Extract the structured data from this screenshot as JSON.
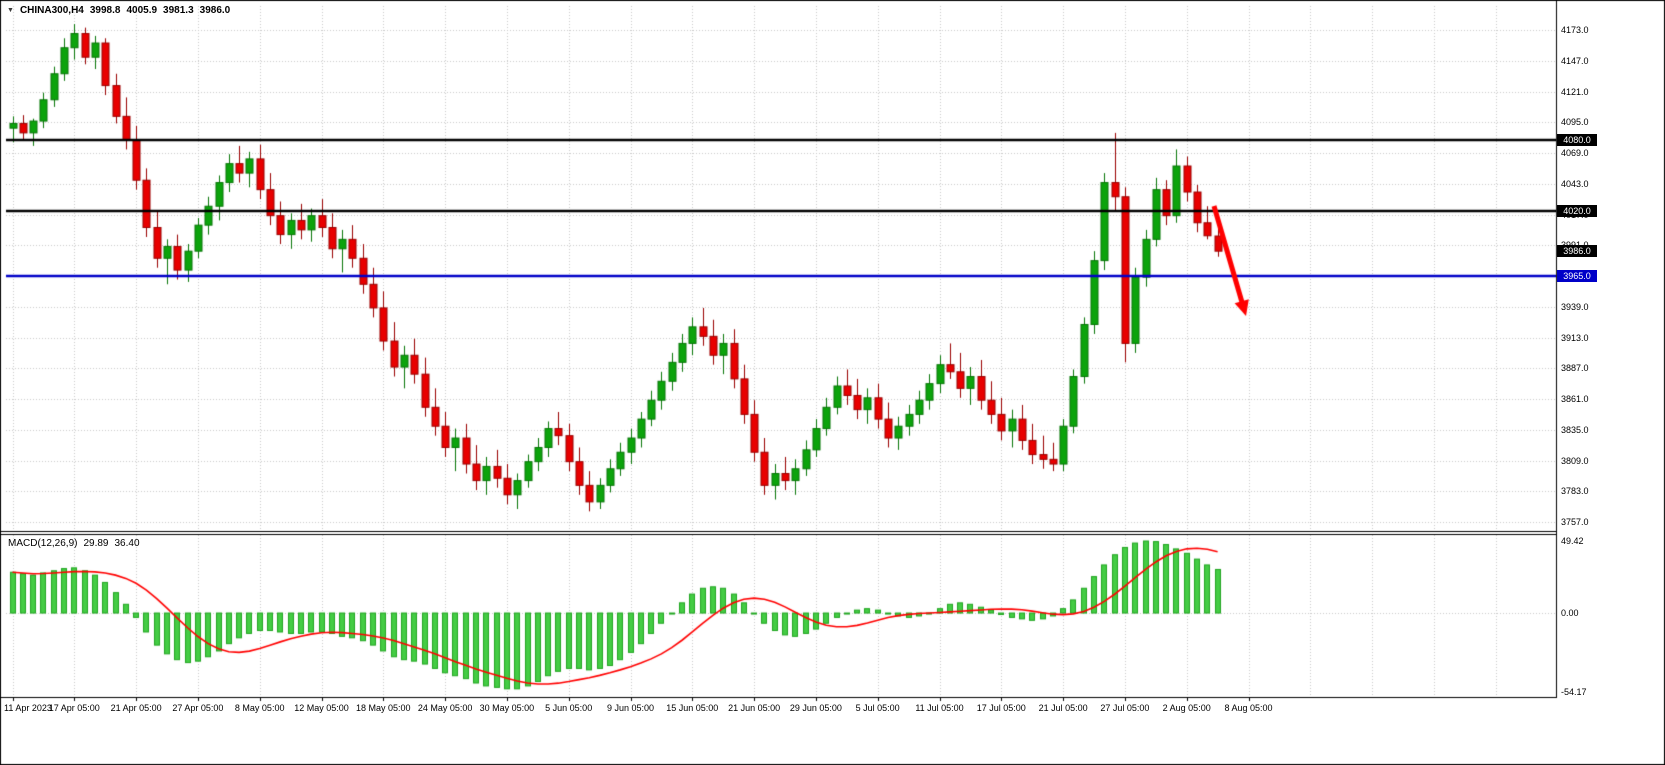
{
  "header": {
    "symbol_period": "CHINA300,H4",
    "open": "3998.8",
    "high": "4005.9",
    "low": "3981.3",
    "close": "3986.0"
  },
  "chart_data": {
    "type": "candlestick+macd",
    "symbol": "CHINA300",
    "timeframe": "H4",
    "price_axis": {
      "max": 4173.0,
      "min": 3757.0,
      "step": 26.0,
      "ticks": [
        "4173.0",
        "4147.0",
        "4121.0",
        "4095.0",
        "4069.0",
        "4043.0",
        "4017.0",
        "3991.0",
        "3965.0",
        "3939.0",
        "3913.0",
        "3887.0",
        "3861.0",
        "3835.0",
        "3809.0",
        "3783.0",
        "3757.0"
      ]
    },
    "time_axis": {
      "bars_per_label": 6,
      "labels": [
        "11 Apr 2023",
        "17 Apr 05:00",
        "21 Apr 05:00",
        "27 Apr 05:00",
        "8 May 05:00",
        "12 May 05:00",
        "18 May 05:00",
        "24 May 05:00",
        "30 May 05:00",
        "5 Jun 05:00",
        "9 Jun 05:00",
        "15 Jun 05:00",
        "21 Jun 05:00",
        "29 Jun 05:00",
        "5 Jul 05:00",
        "11 Jul 05:00",
        "17 Jul 05:00",
        "21 Jul 05:00",
        "27 Jul 05:00",
        "2 Aug 05:00",
        "8 Aug 05:00"
      ]
    },
    "candles": [
      [
        4090,
        4100,
        4078,
        4094
      ],
      [
        4094,
        4101,
        4080,
        4086
      ],
      [
        4086,
        4098,
        4075,
        4096
      ],
      [
        4096,
        4120,
        4090,
        4114
      ],
      [
        4114,
        4142,
        4108,
        4136
      ],
      [
        4136,
        4166,
        4130,
        4158
      ],
      [
        4158,
        4178,
        4148,
        4170
      ],
      [
        4170,
        4175,
        4144,
        4150
      ],
      [
        4150,
        4168,
        4140,
        4162
      ],
      [
        4162,
        4166,
        4118,
        4126
      ],
      [
        4126,
        4136,
        4094,
        4100
      ],
      [
        4100,
        4116,
        4072,
        4080
      ],
      [
        4080,
        4092,
        4038,
        4046
      ],
      [
        4046,
        4056,
        3998,
        4006
      ],
      [
        4006,
        4020,
        3972,
        3980
      ],
      [
        3980,
        3996,
        3958,
        3990
      ],
      [
        3990,
        4000,
        3962,
        3970
      ],
      [
        3970,
        3992,
        3960,
        3986
      ],
      [
        3986,
        4014,
        3980,
        4008
      ],
      [
        4008,
        4032,
        4000,
        4024
      ],
      [
        4024,
        4050,
        4012,
        4044
      ],
      [
        4044,
        4068,
        4036,
        4060
      ],
      [
        4060,
        4075,
        4044,
        4052
      ],
      [
        4052,
        4070,
        4040,
        4064
      ],
      [
        4064,
        4076,
        4030,
        4038
      ],
      [
        4038,
        4052,
        4008,
        4016
      ],
      [
        4016,
        4028,
        3992,
        4000
      ],
      [
        4000,
        4018,
        3988,
        4012
      ],
      [
        4012,
        4026,
        3996,
        4004
      ],
      [
        4004,
        4022,
        3994,
        4016
      ],
      [
        4016,
        4030,
        3998,
        4006
      ],
      [
        4006,
        4018,
        3980,
        3988
      ],
      [
        3988,
        4004,
        3968,
        3996
      ],
      [
        3996,
        4008,
        3972,
        3980
      ],
      [
        3980,
        3992,
        3950,
        3958
      ],
      [
        3958,
        3972,
        3930,
        3938
      ],
      [
        3938,
        3952,
        3902,
        3910
      ],
      [
        3910,
        3926,
        3880,
        3888
      ],
      [
        3888,
        3906,
        3870,
        3898
      ],
      [
        3898,
        3912,
        3874,
        3882
      ],
      [
        3882,
        3896,
        3846,
        3854
      ],
      [
        3854,
        3870,
        3830,
        3838
      ],
      [
        3838,
        3850,
        3812,
        3820
      ],
      [
        3820,
        3836,
        3800,
        3828
      ],
      [
        3828,
        3840,
        3798,
        3806
      ],
      [
        3806,
        3822,
        3784,
        3792
      ],
      [
        3792,
        3812,
        3780,
        3804
      ],
      [
        3804,
        3818,
        3786,
        3794
      ],
      [
        3794,
        3806,
        3772,
        3780
      ],
      [
        3780,
        3798,
        3768,
        3792
      ],
      [
        3792,
        3814,
        3786,
        3808
      ],
      [
        3808,
        3828,
        3800,
        3820
      ],
      [
        3820,
        3842,
        3812,
        3836
      ],
      [
        3836,
        3850,
        3822,
        3830
      ],
      [
        3830,
        3840,
        3800,
        3808
      ],
      [
        3808,
        3820,
        3780,
        3788
      ],
      [
        3788,
        3800,
        3766,
        3774
      ],
      [
        3774,
        3794,
        3768,
        3788
      ],
      [
        3788,
        3810,
        3782,
        3802
      ],
      [
        3802,
        3824,
        3796,
        3816
      ],
      [
        3816,
        3836,
        3806,
        3828
      ],
      [
        3828,
        3850,
        3820,
        3844
      ],
      [
        3844,
        3868,
        3838,
        3860
      ],
      [
        3860,
        3884,
        3852,
        3876
      ],
      [
        3876,
        3900,
        3868,
        3892
      ],
      [
        3892,
        3916,
        3884,
        3908
      ],
      [
        3908,
        3930,
        3898,
        3922
      ],
      [
        3922,
        3938,
        3906,
        3914
      ],
      [
        3914,
        3928,
        3890,
        3898
      ],
      [
        3898,
        3916,
        3882,
        3908
      ],
      [
        3908,
        3920,
        3870,
        3878
      ],
      [
        3878,
        3890,
        3840,
        3848
      ],
      [
        3848,
        3860,
        3808,
        3816
      ],
      [
        3816,
        3828,
        3780,
        3788
      ],
      [
        3788,
        3806,
        3776,
        3798
      ],
      [
        3798,
        3812,
        3784,
        3792
      ],
      [
        3792,
        3810,
        3780,
        3802
      ],
      [
        3802,
        3826,
        3796,
        3818
      ],
      [
        3818,
        3844,
        3812,
        3836
      ],
      [
        3836,
        3862,
        3830,
        3854
      ],
      [
        3854,
        3880,
        3848,
        3872
      ],
      [
        3872,
        3886,
        3856,
        3864
      ],
      [
        3864,
        3878,
        3844,
        3852
      ],
      [
        3852,
        3870,
        3840,
        3862
      ],
      [
        3862,
        3874,
        3836,
        3844
      ],
      [
        3844,
        3858,
        3820,
        3828
      ],
      [
        3828,
        3846,
        3818,
        3838
      ],
      [
        3838,
        3856,
        3830,
        3848
      ],
      [
        3848,
        3868,
        3840,
        3860
      ],
      [
        3860,
        3882,
        3852,
        3874
      ],
      [
        3874,
        3898,
        3866,
        3890
      ],
      [
        3890,
        3908,
        3878,
        3884
      ],
      [
        3884,
        3900,
        3862,
        3870
      ],
      [
        3870,
        3888,
        3856,
        3880
      ],
      [
        3880,
        3894,
        3852,
        3860
      ],
      [
        3860,
        3876,
        3840,
        3848
      ],
      [
        3848,
        3862,
        3826,
        3834
      ],
      [
        3834,
        3852,
        3820,
        3844
      ],
      [
        3844,
        3856,
        3818,
        3826
      ],
      [
        3826,
        3840,
        3806,
        3814
      ],
      [
        3814,
        3830,
        3802,
        3810
      ],
      [
        3810,
        3824,
        3800,
        3806
      ],
      [
        3806,
        3844,
        3800,
        3838
      ],
      [
        3838,
        3886,
        3832,
        3880
      ],
      [
        3880,
        3930,
        3874,
        3924
      ],
      [
        3924,
        3986,
        3916,
        3978
      ],
      [
        3978,
        4052,
        3970,
        4044
      ],
      [
        4044,
        4086,
        4020,
        4032
      ],
      [
        4032,
        4040,
        3892,
        3908
      ],
      [
        3908,
        3972,
        3900,
        3964
      ],
      [
        3964,
        4004,
        3956,
        3996
      ],
      [
        3996,
        4048,
        3990,
        4038
      ],
      [
        4038,
        4046,
        4008,
        4016
      ],
      [
        4016,
        4072,
        4010,
        4058
      ],
      [
        4058,
        4066,
        4028,
        4036
      ],
      [
        4036,
        4042,
        4002,
        4010
      ],
      [
        4010,
        4024,
        3996,
        3999
      ],
      [
        3998.8,
        4005.9,
        3981.3,
        3986.0
      ]
    ],
    "levels": [
      {
        "price": 4080.0,
        "label": "4080.0",
        "color": "#000000",
        "width": 2.5
      },
      {
        "price": 4020.0,
        "label": "4020.0",
        "color": "#000000",
        "width": 2.5
      },
      {
        "price": 3965.0,
        "label": "3965.0",
        "color": "#0000C8",
        "width": 2.5
      }
    ],
    "current_price_badge": {
      "price": 3986.0,
      "label": "3986.0",
      "color": "#000000"
    },
    "macd": {
      "name": "MACD(12,26,9)",
      "main_value": "29.89",
      "signal_value": "36.40",
      "signal_period": 9,
      "axis": {
        "max": 49.42,
        "min": -54.17,
        "ticks": [
          "49.42",
          "0.00",
          "-54.17"
        ]
      },
      "main": [
        28,
        27,
        26,
        27.5,
        29,
        30.5,
        31,
        29,
        26,
        21,
        14,
        6,
        -3,
        -13,
        -22,
        -28,
        -32,
        -34,
        -33,
        -30,
        -26,
        -21,
        -17,
        -14,
        -12,
        -12,
        -13,
        -14,
        -14,
        -13,
        -13,
        -14,
        -16,
        -17,
        -19,
        -22,
        -26,
        -30,
        -32,
        -33,
        -35,
        -38,
        -41,
        -43,
        -45,
        -48,
        -50,
        -51,
        -52,
        -52,
        -50,
        -47,
        -43,
        -40,
        -38,
        -38,
        -39,
        -38,
        -36,
        -32,
        -27,
        -21,
        -14,
        -7,
        0,
        7,
        13,
        17,
        18,
        17,
        13,
        7,
        0,
        -7,
        -12,
        -15,
        -16,
        -14,
        -11,
        -7,
        -3,
        0,
        2,
        3,
        2,
        0,
        -2,
        -3,
        -2,
        0,
        3,
        6,
        7,
        6,
        4,
        2,
        -1,
        -3,
        -4,
        -5,
        -4,
        -2,
        3,
        9,
        17,
        25,
        33,
        40,
        45,
        48,
        49.4,
        49,
        47,
        44,
        41,
        37,
        33,
        29.89
      ]
    },
    "annotation_arrow": {
      "color": "#FF0000",
      "from_xy": [
        1214,
        206
      ],
      "to_xy": [
        1246,
        316
      ]
    }
  },
  "colors": {
    "background": "#FFFFFF",
    "border": "#000000",
    "grid": "#C9C9C9",
    "bull_fill": "#0CA30C",
    "bull_stroke": "#077607",
    "bear_fill": "#E80000",
    "bear_stroke": "#9A0000",
    "hist_fill": "#44CC44",
    "hist_stroke": "#1FA51F",
    "signal_line": "#FF0000",
    "axis_text": "#000000",
    "badge_text": "#FFFFFF"
  }
}
